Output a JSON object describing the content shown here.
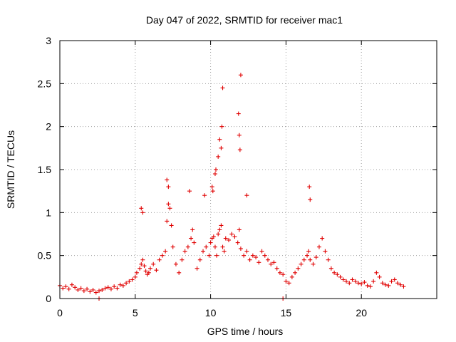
{
  "chart_data": {
    "type": "scatter",
    "title": "Day 047 of 2022, SRMTID for receiver mac1",
    "xlabel": "GPS time / hours",
    "ylabel": "SRMTID / TECUs",
    "xlim": [
      0,
      25
    ],
    "ylim": [
      0,
      3
    ],
    "x_ticks": [
      0,
      5,
      10,
      15,
      20
    ],
    "x_tick_labels": [
      "0",
      "5",
      "10",
      "15",
      "20"
    ],
    "y_ticks": [
      0,
      0.5,
      1,
      1.5,
      2,
      2.5,
      3
    ],
    "y_tick_labels": [
      "0",
      "0.5",
      "1",
      "1.5",
      "2",
      "2.5",
      "3"
    ],
    "grid": true,
    "marker": "plus",
    "color": "#e00000",
    "series": [
      {
        "name": "SRMTID",
        "x": [
          0.0,
          0.2,
          0.4,
          0.6,
          0.8,
          1.0,
          1.2,
          1.4,
          1.6,
          1.8,
          2.0,
          2.2,
          2.4,
          2.6,
          2.8,
          3.0,
          3.2,
          3.4,
          3.6,
          3.8,
          4.0,
          4.2,
          4.4,
          4.6,
          4.8,
          5.0,
          5.1,
          5.3,
          5.4,
          5.5,
          5.6,
          5.7,
          5.8,
          5.9,
          6.0,
          6.2,
          6.4,
          6.6,
          6.8,
          7.0,
          7.1,
          7.2,
          7.3,
          7.4,
          7.5,
          7.7,
          7.9,
          8.1,
          8.3,
          8.5,
          8.7,
          8.8,
          8.9,
          9.1,
          9.3,
          9.5,
          9.7,
          9.9,
          10.0,
          10.1,
          10.2,
          10.3,
          10.4,
          10.5,
          10.6,
          10.7,
          10.8,
          10.9,
          11.0,
          11.2,
          11.4,
          11.6,
          11.8,
          11.9,
          12.0,
          12.2,
          12.4,
          12.6,
          12.8,
          13.0,
          13.2,
          13.4,
          13.6,
          13.8,
          14.0,
          14.2,
          14.4,
          14.6,
          14.8,
          15.0,
          15.2,
          15.4,
          15.6,
          15.8,
          16.0,
          16.2,
          16.4,
          16.5,
          16.6,
          16.8,
          17.0,
          17.2,
          17.4,
          17.6,
          17.8,
          18.0,
          18.2,
          18.4,
          18.6,
          18.8,
          19.0,
          19.2,
          19.4,
          19.6,
          19.8,
          20.0,
          20.2,
          20.4,
          20.6,
          20.8,
          21.0,
          21.2,
          21.4,
          21.6,
          21.8,
          22.0,
          22.2,
          22.4,
          22.6,
          22.8,
          5.4,
          5.5,
          7.1,
          7.2,
          8.6,
          9.6,
          10.1,
          10.15,
          10.3,
          10.35,
          10.5,
          10.6,
          10.7,
          10.75,
          10.8,
          11.85,
          11.9,
          11.95,
          12.0,
          12.4,
          16.55,
          16.6,
          2.6,
          14.8
        ],
        "y": [
          0.15,
          0.12,
          0.14,
          0.11,
          0.16,
          0.13,
          0.1,
          0.12,
          0.09,
          0.11,
          0.08,
          0.1,
          0.07,
          0.09,
          0.1,
          0.12,
          0.13,
          0.11,
          0.14,
          0.12,
          0.16,
          0.15,
          0.18,
          0.2,
          0.22,
          0.25,
          0.3,
          0.35,
          0.4,
          0.45,
          0.38,
          0.32,
          0.28,
          0.3,
          0.35,
          0.4,
          0.33,
          0.45,
          0.5,
          0.55,
          0.9,
          1.1,
          1.05,
          0.85,
          0.6,
          0.4,
          0.3,
          0.45,
          0.55,
          0.6,
          0.7,
          0.8,
          0.65,
          0.35,
          0.45,
          0.55,
          0.6,
          0.5,
          0.65,
          0.7,
          0.72,
          0.6,
          0.5,
          0.75,
          0.8,
          0.85,
          0.6,
          0.55,
          0.7,
          0.68,
          0.75,
          0.72,
          0.65,
          0.8,
          0.58,
          0.5,
          0.55,
          0.45,
          0.5,
          0.48,
          0.42,
          0.55,
          0.5,
          0.45,
          0.4,
          0.42,
          0.35,
          0.3,
          0.28,
          0.2,
          0.18,
          0.25,
          0.3,
          0.35,
          0.4,
          0.45,
          0.5,
          0.55,
          0.45,
          0.4,
          0.48,
          0.6,
          0.7,
          0.55,
          0.45,
          0.35,
          0.3,
          0.28,
          0.25,
          0.22,
          0.2,
          0.18,
          0.22,
          0.2,
          0.18,
          0.17,
          0.19,
          0.15,
          0.14,
          0.2,
          0.3,
          0.25,
          0.18,
          0.16,
          0.15,
          0.2,
          0.22,
          0.18,
          0.16,
          0.14,
          1.05,
          1.0,
          1.38,
          1.3,
          1.25,
          1.2,
          1.3,
          1.25,
          1.45,
          1.5,
          1.65,
          1.85,
          1.75,
          2.0,
          2.45,
          2.15,
          1.9,
          1.73,
          2.6,
          1.2,
          1.3,
          1.15,
          0.0,
          0.0
        ]
      }
    ]
  }
}
